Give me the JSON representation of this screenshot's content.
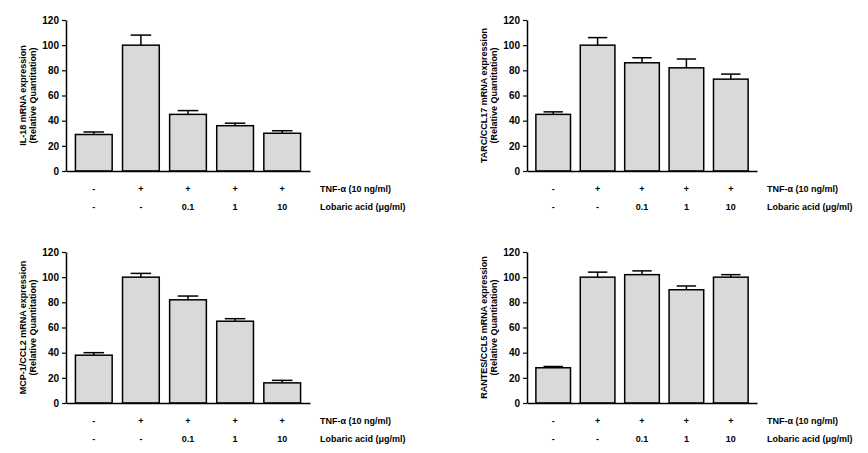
{
  "chart_data": [
    {
      "type": "bar",
      "y_label": [
        "IL-18 mRNA expression",
        "(Relative Quantitation)"
      ],
      "x_rows": [
        {
          "label": "TNF-α (10 ng/ml)",
          "values": [
            "-",
            "+",
            "+",
            "+",
            "+"
          ]
        },
        {
          "label": "Lobaric acid (μg/ml)",
          "values": [
            "-",
            "-",
            "0.1",
            "1",
            "10"
          ]
        }
      ],
      "values": [
        29,
        100,
        45,
        36,
        30
      ],
      "errors": [
        2,
        8,
        3,
        2,
        2
      ],
      "color": "#d9d9d9",
      "ylim": [
        0,
        120
      ],
      "yticks": [
        0,
        20,
        40,
        60,
        80,
        100,
        120
      ],
      "grid": false
    },
    {
      "type": "bar",
      "y_label": [
        "TARC/CCL17 mRNA expression",
        "(Relative Quantitation)"
      ],
      "x_rows": [
        {
          "label": "TNF-α (10 ng/ml)",
          "values": [
            "-",
            "+",
            "+",
            "+",
            "+"
          ]
        },
        {
          "label": "Lobaric acid (μg/ml)",
          "values": [
            "-",
            "-",
            "0.1",
            "1",
            "10"
          ]
        }
      ],
      "values": [
        45,
        100,
        86,
        82,
        73
      ],
      "errors": [
        2,
        6,
        4,
        7,
        4
      ],
      "color": "#d9d9d9",
      "ylim": [
        0,
        120
      ],
      "yticks": [
        0,
        20,
        40,
        60,
        80,
        100,
        120
      ],
      "grid": false
    },
    {
      "type": "bar",
      "y_label": [
        "MCP-1/CCL2 mRNA expression",
        "(Relative Quantitation)"
      ],
      "x_rows": [
        {
          "label": "TNF-α (10 ng/ml)",
          "values": [
            "-",
            "+",
            "+",
            "+",
            "+"
          ]
        },
        {
          "label": "Lobaric acid (μg/ml)",
          "values": [
            "-",
            "-",
            "0.1",
            "1",
            "10"
          ]
        }
      ],
      "values": [
        38,
        100,
        82,
        65,
        16
      ],
      "errors": [
        2,
        3,
        3,
        2,
        2
      ],
      "color": "#d9d9d9",
      "ylim": [
        0,
        120
      ],
      "yticks": [
        0,
        20,
        40,
        60,
        80,
        100,
        120
      ],
      "grid": false
    },
    {
      "type": "bar",
      "y_label": [
        "RANTES/CCL5 mRNA expression",
        "(Relative Quantitation)"
      ],
      "x_rows": [
        {
          "label": "TNF-α (10 ng/ml)",
          "values": [
            "-",
            "+",
            "+",
            "+",
            "+"
          ]
        },
        {
          "label": "Lobaric acid (μg/ml)",
          "values": [
            "-",
            "-",
            "0.1",
            "1",
            "10"
          ]
        }
      ],
      "values": [
        28,
        100,
        102,
        90,
        100
      ],
      "errors": [
        1,
        4,
        3,
        3,
        2
      ],
      "color": "#d9d9d9",
      "ylim": [
        0,
        120
      ],
      "yticks": [
        0,
        20,
        40,
        60,
        80,
        100,
        120
      ],
      "grid": false
    }
  ]
}
